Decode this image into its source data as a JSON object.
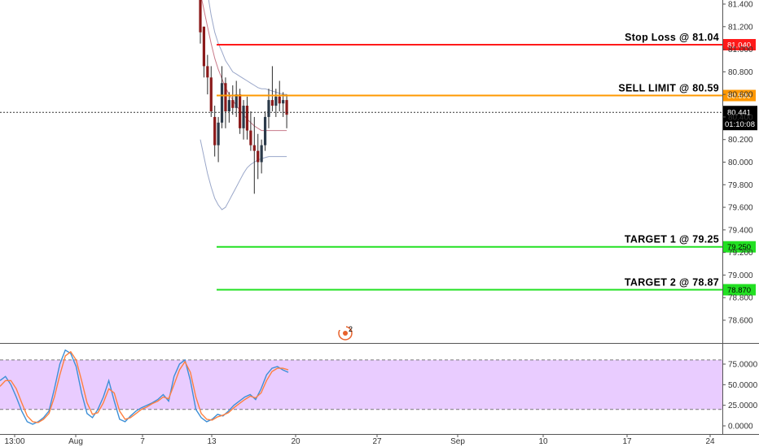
{
  "chart_data": [
    {
      "type": "line",
      "panel": "price",
      "y_axis": {
        "ticks": [
          "81.400",
          "81.200",
          "81.000",
          "80.800",
          "80.600",
          "80.400",
          "80.200",
          "80.000",
          "79.800",
          "79.600",
          "79.400",
          "79.200",
          "79.000",
          "78.800",
          "78.600"
        ],
        "range": [
          78.45,
          81.47
        ]
      },
      "x_axis": {
        "ticks": [
          "13:00",
          "Aug",
          "7",
          "13",
          "20",
          "27",
          "Sep",
          "10",
          "17",
          "24"
        ]
      },
      "current_price": {
        "value": "80.441",
        "countdown": "01:10:08",
        "color": "#000000"
      },
      "levels": [
        {
          "name": "stop-loss",
          "label": "Stop Loss @ 81.04",
          "tag": "81.040",
          "value": 81.04,
          "color": "#ff1a1a"
        },
        {
          "name": "sell-limit",
          "label": "SELL LIMIT @ 80.59",
          "tag": "80.590",
          "value": 80.59,
          "color": "#ff9800"
        },
        {
          "name": "target-1",
          "label": "TARGET 1 @ 79.25",
          "tag": "79.250",
          "value": 79.25,
          "color": "#22e022"
        },
        {
          "name": "target-2",
          "label": "TARGET 2 @ 78.87",
          "tag": "78.870",
          "value": 78.87,
          "color": "#22e022"
        }
      ],
      "candles": [
        [
          81.45,
          81.45,
          81.05,
          81.15
        ],
        [
          81.2,
          81.2,
          80.75,
          80.85
        ],
        [
          80.85,
          80.95,
          80.6,
          80.75
        ],
        [
          80.75,
          80.85,
          80.4,
          80.45
        ],
        [
          80.4,
          80.5,
          80.05,
          80.15
        ],
        [
          80.15,
          80.4,
          80.0,
          80.35
        ],
        [
          80.35,
          80.85,
          80.3,
          80.7
        ],
        [
          80.7,
          80.75,
          80.3,
          80.45
        ],
        [
          80.45,
          80.62,
          80.35,
          80.55
        ],
        [
          80.55,
          80.68,
          80.42,
          80.48
        ],
        [
          80.48,
          80.72,
          80.4,
          80.6
        ],
        [
          80.6,
          80.65,
          80.25,
          80.3
        ],
        [
          80.3,
          80.55,
          80.2,
          80.5
        ],
        [
          80.5,
          80.58,
          80.2,
          80.28
        ],
        [
          80.28,
          80.45,
          80.1,
          80.15
        ],
        [
          80.15,
          80.4,
          79.72,
          80.1
        ],
        [
          80.1,
          80.25,
          79.85,
          80.0
        ],
        [
          80.0,
          80.2,
          79.9,
          80.15
        ],
        [
          80.15,
          80.45,
          80.1,
          80.4
        ],
        [
          80.4,
          80.65,
          80.3,
          80.55
        ],
        [
          80.55,
          80.85,
          80.45,
          80.5
        ],
        [
          80.5,
          80.65,
          80.4,
          80.58
        ],
        [
          80.58,
          80.72,
          80.45,
          80.52
        ],
        [
          80.52,
          80.62,
          80.4,
          80.55
        ],
        [
          80.55,
          80.6,
          80.3,
          80.42
        ]
      ],
      "bands": {
        "color": "#9aa7c9",
        "upper": [
          81.9,
          81.7,
          81.5,
          81.3,
          81.15,
          81.05,
          80.98,
          80.9,
          80.85,
          80.8,
          80.78,
          80.76,
          80.74,
          80.72,
          80.7,
          80.68,
          80.66,
          80.65,
          80.65,
          80.64,
          80.63,
          80.62,
          80.61,
          80.6,
          80.6
        ],
        "middle": [
          81.5,
          81.35,
          81.2,
          81.05,
          80.92,
          80.82,
          80.74,
          80.66,
          80.6,
          80.55,
          80.5,
          80.46,
          80.42,
          80.38,
          80.35,
          80.32,
          80.3,
          80.28,
          80.28,
          80.28,
          80.28,
          80.28,
          80.28,
          80.28,
          80.28
        ],
        "lower": [
          80.2,
          80.05,
          79.9,
          79.78,
          79.68,
          79.62,
          79.58,
          79.6,
          79.66,
          79.72,
          79.78,
          79.84,
          79.9,
          79.95,
          79.98,
          80.0,
          80.02,
          80.03,
          80.04,
          80.05,
          80.05,
          80.05,
          80.05,
          80.05,
          80.05
        ]
      }
    },
    {
      "type": "line",
      "panel": "oscillator",
      "y_axis": {
        "ticks": [
          "75.0000",
          "50.0000",
          "25.0000",
          "0.0000"
        ],
        "range": [
          -7,
          107
        ]
      },
      "overbought": 80,
      "oversold": 20,
      "zone_color": "#e9ccff",
      "series": [
        {
          "color": "#3d8fd6",
          "values": [
            55,
            60,
            50,
            35,
            18,
            5,
            2,
            5,
            10,
            18,
            45,
            75,
            92,
            88,
            72,
            40,
            15,
            10,
            20,
            35,
            55,
            30,
            8,
            5,
            12,
            18,
            22,
            25,
            28,
            32,
            38,
            30,
            60,
            75,
            80,
            55,
            20,
            10,
            5,
            8,
            14,
            12,
            18,
            25,
            30,
            35,
            38,
            32,
            45,
            62,
            70,
            72,
            68,
            65
          ]
        },
        {
          "color": "#ff7f3f",
          "values": [
            48,
            55,
            55,
            45,
            28,
            12,
            5,
            4,
            8,
            15,
            35,
            62,
            85,
            90,
            80,
            55,
            28,
            14,
            16,
            28,
            45,
            40,
            18,
            8,
            10,
            15,
            20,
            23,
            27,
            30,
            35,
            33,
            50,
            68,
            78,
            65,
            35,
            15,
            8,
            7,
            11,
            13,
            16,
            22,
            27,
            32,
            36,
            34,
            40,
            55,
            66,
            70,
            70,
            68
          ]
        }
      ]
    }
  ],
  "marker": {
    "badge": "2",
    "color": "#e8622c"
  }
}
